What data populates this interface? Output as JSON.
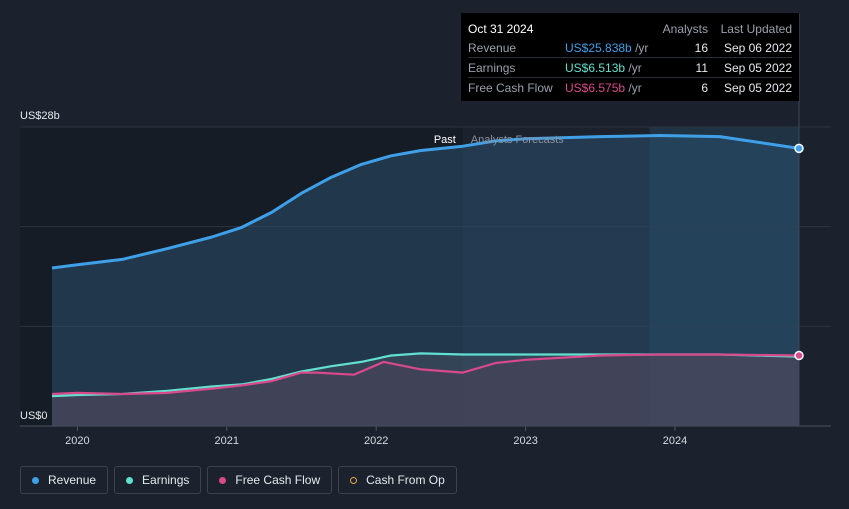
{
  "tooltip": {
    "date": "Oct 31 2024",
    "col_analysts": "Analysts",
    "col_updated": "Last Updated",
    "rows": [
      {
        "label": "Revenue",
        "value": "US$25.838b",
        "unit": "/yr",
        "analysts": "16",
        "updated": "Sep 06 2022",
        "color": "#3fa0e8"
      },
      {
        "label": "Earnings",
        "value": "US$6.513b",
        "unit": "/yr",
        "analysts": "11",
        "updated": "Sep 05 2022",
        "color": "#62e0cf"
      },
      {
        "label": "Free Cash Flow",
        "value": "US$6.575b",
        "unit": "/yr",
        "analysts": "6",
        "updated": "Sep 05 2022",
        "color": "#d9498c"
      }
    ]
  },
  "legend": [
    {
      "label": "Revenue",
      "color": "#3fa0e8",
      "style": "filled"
    },
    {
      "label": "Earnings",
      "color": "#62e0cf",
      "style": "filled"
    },
    {
      "label": "Free Cash Flow",
      "color": "#d9498c",
      "style": "filled"
    },
    {
      "label": "Cash From Op",
      "color": "#e8a24a",
      "style": "outline"
    }
  ],
  "chart_data": {
    "type": "area",
    "ylabel_top": "US$28b",
    "ylabel_bottom": "US$0",
    "ylim": [
      0,
      28
    ],
    "xlim": [
      2019.83,
      2024.83
    ],
    "x_ticks": [
      2020,
      2021,
      2022,
      2023,
      2024
    ],
    "x_tick_labels": [
      "2020",
      "2021",
      "2022",
      "2023",
      "2024"
    ],
    "past_label": "Past",
    "forecast_label": "Analysts Forecasts",
    "past_end": 2022.58,
    "highlight_start": 2023.83,
    "colors": {
      "revenue": "#3fa0e8",
      "earnings": "#62e0cf",
      "fcf": "#d9498c"
    },
    "series": [
      {
        "name": "Revenue",
        "key": "revenue",
        "x": [
          2019.83,
          2020.0,
          2020.3,
          2020.6,
          2020.9,
          2021.1,
          2021.3,
          2021.5,
          2021.7,
          2021.9,
          2022.1,
          2022.3,
          2022.58,
          2022.8,
          2023.0,
          2023.5,
          2023.9,
          2024.3,
          2024.83
        ],
        "values": [
          14.8,
          15.1,
          15.6,
          16.6,
          17.7,
          18.6,
          20.0,
          21.8,
          23.3,
          24.5,
          25.3,
          25.8,
          26.2,
          26.7,
          26.9,
          27.1,
          27.2,
          27.1,
          26.0
        ]
      },
      {
        "name": "Earnings",
        "key": "earnings",
        "x": [
          2019.83,
          2020.0,
          2020.3,
          2020.6,
          2020.9,
          2021.1,
          2021.3,
          2021.5,
          2021.7,
          2021.9,
          2022.1,
          2022.3,
          2022.58,
          2022.8,
          2023.0,
          2023.5,
          2023.9,
          2024.3,
          2024.83
        ],
        "values": [
          2.8,
          2.9,
          3.0,
          3.3,
          3.7,
          3.9,
          4.4,
          5.1,
          5.6,
          6.0,
          6.6,
          6.8,
          6.7,
          6.7,
          6.7,
          6.7,
          6.7,
          6.7,
          6.5
        ]
      },
      {
        "name": "Free Cash Flow",
        "key": "fcf",
        "x": [
          2019.83,
          2020.0,
          2020.3,
          2020.6,
          2020.9,
          2021.1,
          2021.3,
          2021.5,
          2021.6,
          2021.85,
          2022.05,
          2022.3,
          2022.58,
          2022.8,
          2023.0,
          2023.5,
          2023.9,
          2024.3,
          2024.83
        ],
        "values": [
          3.0,
          3.1,
          3.0,
          3.1,
          3.5,
          3.8,
          4.2,
          5.0,
          5.0,
          4.8,
          6.0,
          5.3,
          5.0,
          5.9,
          6.2,
          6.6,
          6.7,
          6.7,
          6.6
        ]
      }
    ]
  }
}
